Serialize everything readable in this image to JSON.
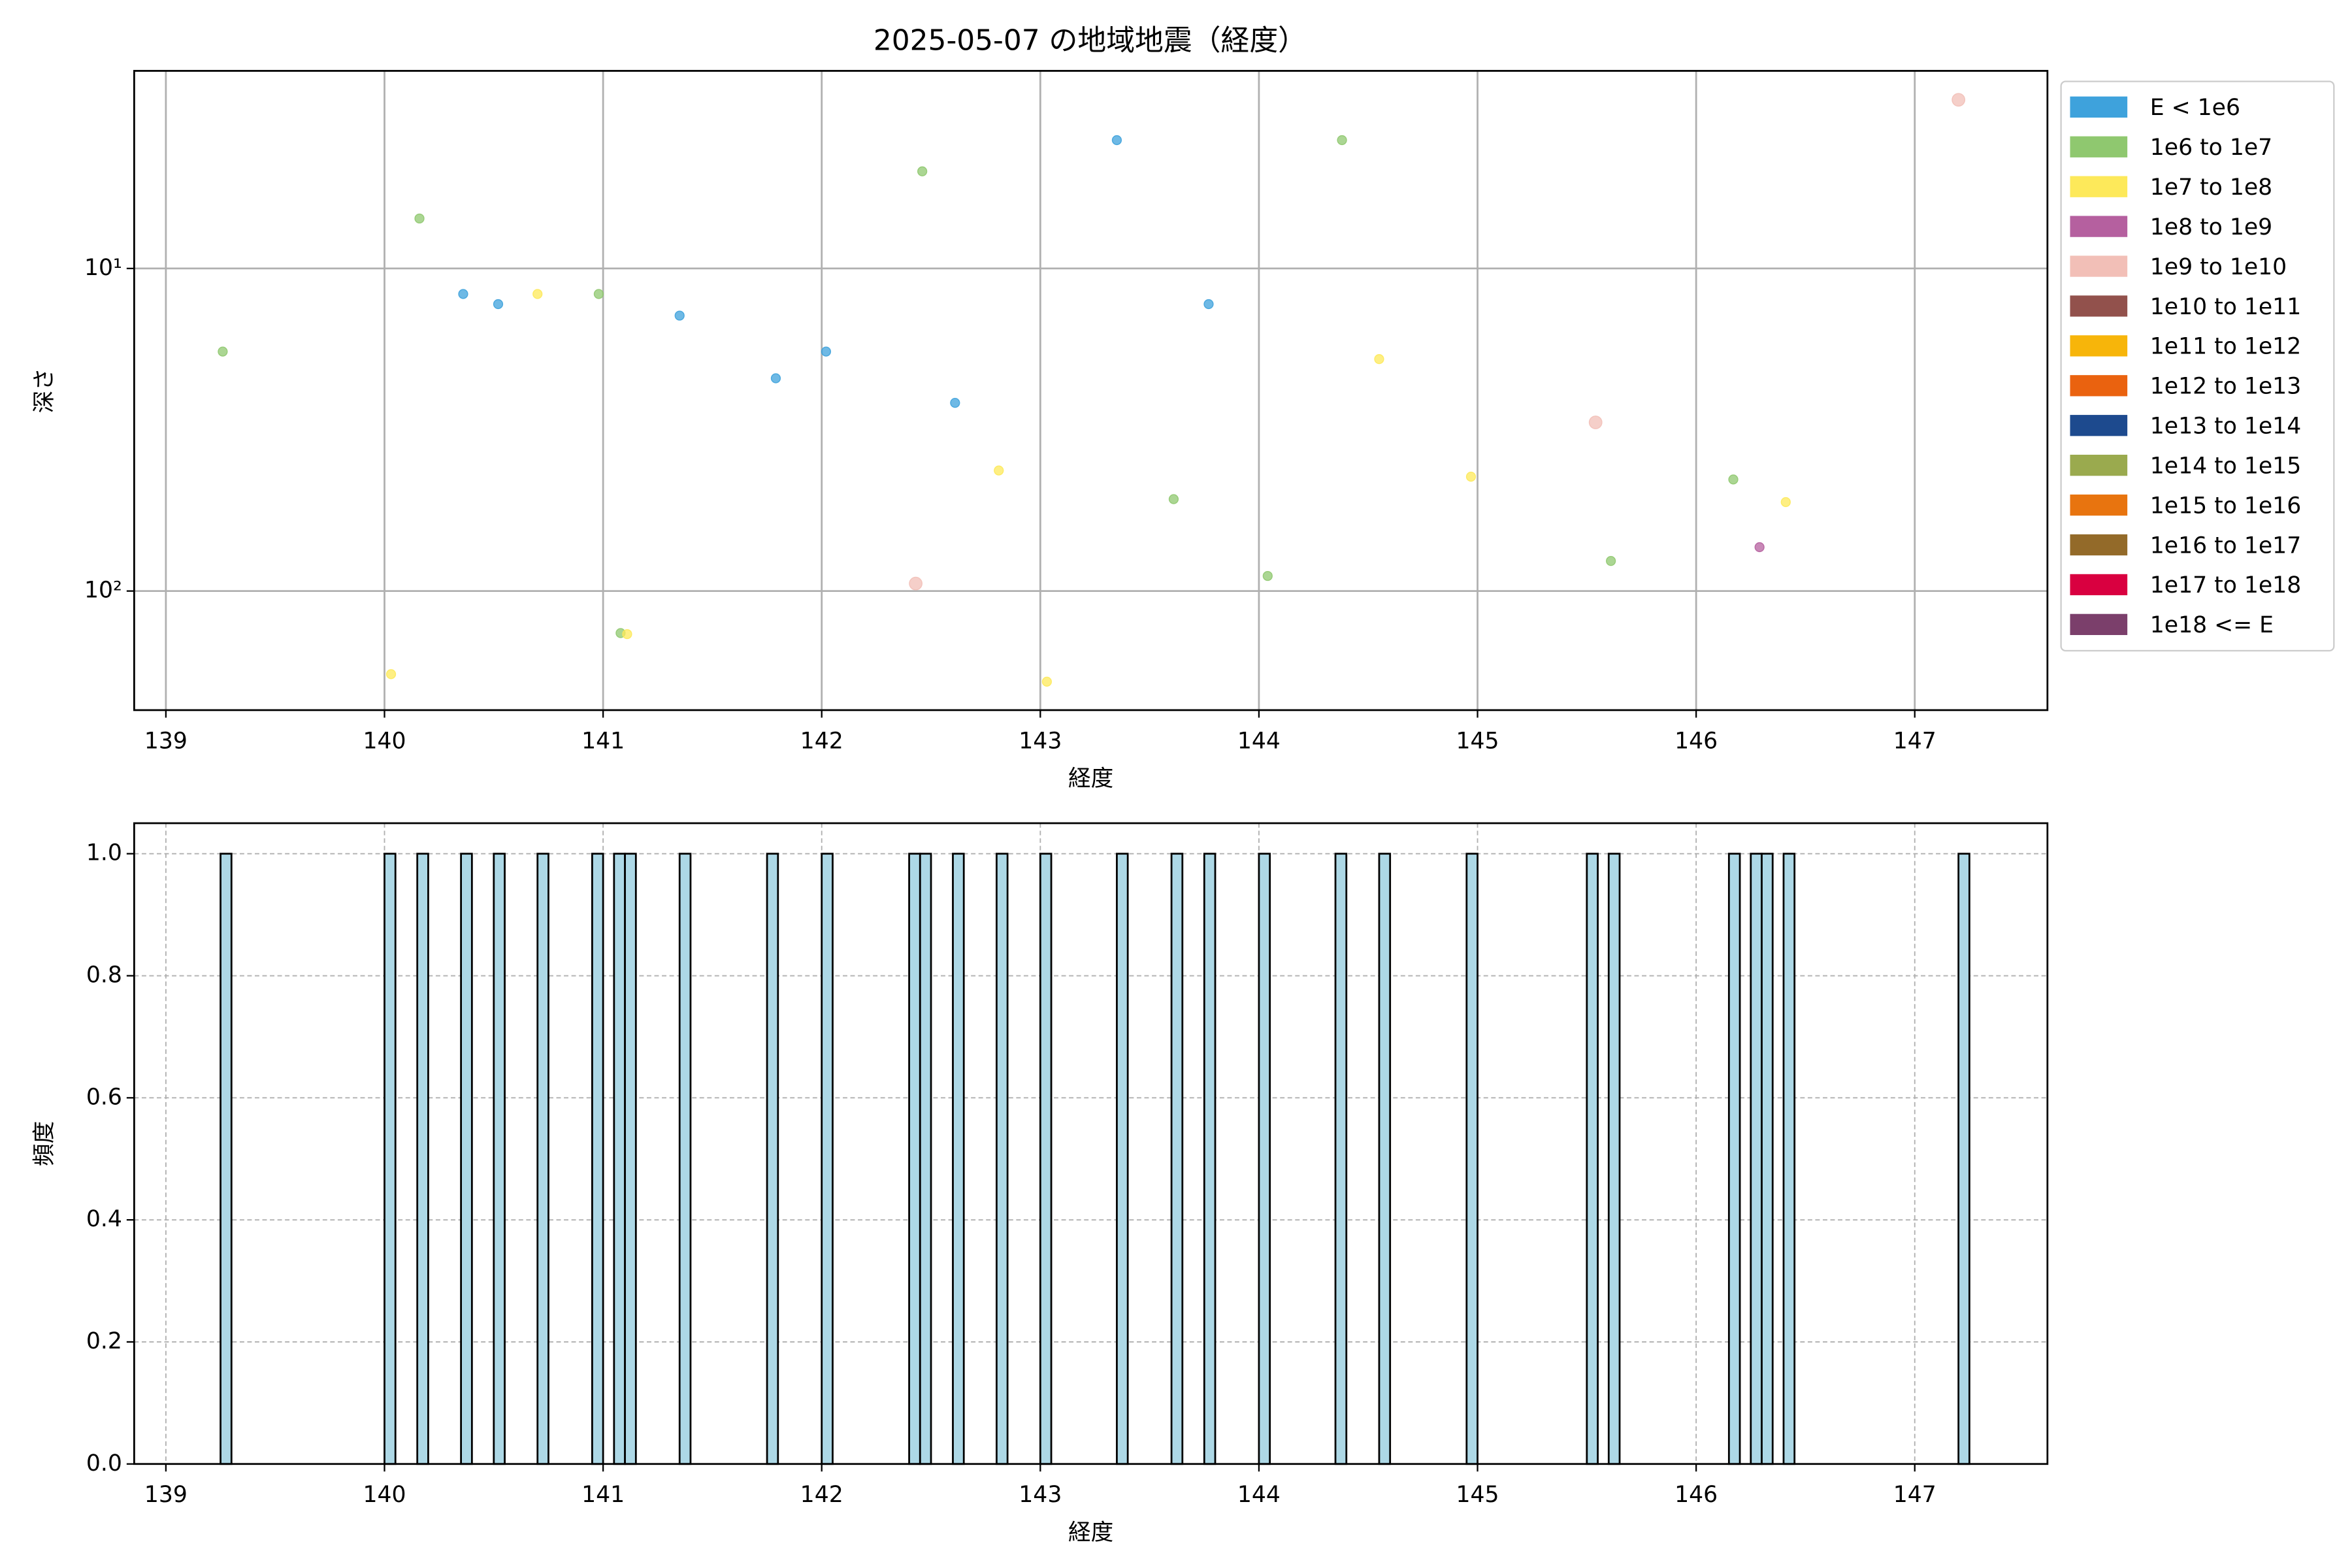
{
  "chart_data": [
    {
      "type": "scatter",
      "title": "2025-05-07 の地域地震（経度）",
      "xlabel": "経度",
      "ylabel": "深さ",
      "log_y": true,
      "grid": true,
      "grid_style": "solid",
      "legend": "outside right",
      "xlim": [
        138.855,
        147.607
      ],
      "xticks": [
        139,
        140,
        141,
        142,
        143,
        144,
        145,
        146,
        147
      ],
      "ylim": [
        234,
        2.44
      ],
      "yticks": [
        {
          "value": 10,
          "label": "10¹"
        },
        {
          "value": 100,
          "label": "10²"
        }
      ],
      "series": [
        {
          "name": "E < 1e6",
          "color": "#3ea2dc",
          "x": [
            140.36,
            140.52,
            141.35,
            141.79,
            142.02,
            142.61,
            143.35,
            143.77
          ],
          "values": [
            12.0,
            12.9,
            14.0,
            21.9,
            18.1,
            26.1,
            4.0,
            12.9
          ]
        },
        {
          "name": "1e6 to 1e7",
          "color": "#8fc86f",
          "x": [
            139.26,
            140.16,
            140.98,
            141.08,
            142.46,
            143.61,
            144.04,
            144.38,
            145.61,
            146.17
          ],
          "values": [
            18.1,
            7.0,
            12.0,
            135,
            5.0,
            51.9,
            89.8,
            4.0,
            80.7,
            45.1
          ]
        },
        {
          "name": "1e7 to 1e8",
          "color": "#fde95a",
          "x": [
            140.03,
            140.7,
            141.11,
            142.81,
            143.03,
            144.55,
            144.97,
            146.41
          ],
          "values": [
            181,
            12.0,
            136,
            42.3,
            191,
            19.1,
            44.2,
            53.0
          ]
        },
        {
          "name": "1e8 to 1e9",
          "color": "#b5609f",
          "x": [
            146.29
          ],
          "values": [
            73.1
          ]
        },
        {
          "name": "1e9 to 1e10",
          "color": "#f2bfb7",
          "x": [
            142.43,
            145.54,
            147.2
          ],
          "values": [
            94.8,
            30.0,
            3.0
          ]
        },
        {
          "name": "1e10 to 1e11",
          "color": "#92514c",
          "x": [],
          "values": []
        },
        {
          "name": "1e11 to 1e12",
          "color": "#f7b50a",
          "x": [],
          "values": []
        },
        {
          "name": "1e12 to 1e13",
          "color": "#ea620f",
          "x": [],
          "values": []
        },
        {
          "name": "1e13 to 1e14",
          "color": "#1d4a8e",
          "x": [],
          "values": []
        },
        {
          "name": "1e14 to 1e15",
          "color": "#9aaa4e",
          "x": [],
          "values": []
        },
        {
          "name": "1e15 to 1e16",
          "color": "#e8740f",
          "x": [],
          "values": []
        },
        {
          "name": "1e16 to 1e17",
          "color": "#936a29",
          "x": [],
          "values": []
        },
        {
          "name": "1e17 to 1e18",
          "color": "#d90040",
          "x": [],
          "values": []
        },
        {
          "name": "1e18 <= E",
          "color": "#7b3f6b",
          "x": [],
          "values": []
        }
      ]
    },
    {
      "type": "histogram",
      "xlabel": "経度",
      "ylabel": "頻度",
      "grid": true,
      "grid_style": "dashed",
      "color": "#add8e6",
      "edgecolor": "#000000",
      "xlim": [
        138.855,
        147.607
      ],
      "xticks": [
        139,
        140,
        141,
        142,
        143,
        144,
        145,
        146,
        147
      ],
      "ylim": [
        0,
        1.05
      ],
      "yticks": [
        {
          "value": 0,
          "label": "0.0"
        },
        {
          "value": 0.2,
          "label": "0.2"
        },
        {
          "value": 0.4,
          "label": "0.4"
        },
        {
          "value": 0.6,
          "label": "0.6"
        },
        {
          "value": 0.8,
          "label": "0.8"
        },
        {
          "value": 1,
          "label": "1.0"
        }
      ],
      "bins": [
        139.25,
        139.3,
        139.35,
        139.4,
        139.45,
        139.5,
        139.55,
        139.6,
        139.65,
        139.7,
        139.75,
        139.8,
        139.85,
        139.9,
        139.95,
        140,
        140.05,
        140.1,
        140.15,
        140.2,
        140.25,
        140.3,
        140.35,
        140.4,
        140.45,
        140.5,
        140.55,
        140.6,
        140.65,
        140.7,
        140.75,
        140.8,
        140.85,
        140.9,
        140.95,
        141,
        141.05,
        141.1,
        141.15,
        141.2,
        141.25,
        141.3,
        141.35,
        141.4,
        141.45,
        141.5,
        141.55,
        141.6,
        141.65,
        141.7,
        141.75,
        141.8,
        141.85,
        141.9,
        141.95,
        142,
        142.05,
        142.1,
        142.15,
        142.2,
        142.25,
        142.3,
        142.35,
        142.4,
        142.45,
        142.5,
        142.55,
        142.6,
        142.65,
        142.7,
        142.75,
        142.8,
        142.85,
        142.9,
        142.95,
        143,
        143.05,
        143.1,
        143.15,
        143.2,
        143.25,
        143.3,
        143.35,
        143.4,
        143.45,
        143.5,
        143.55,
        143.6,
        143.65,
        143.7,
        143.75,
        143.8,
        143.85,
        143.9,
        143.95,
        144,
        144.05,
        144.1,
        144.15,
        144.2,
        144.25,
        144.3,
        144.35,
        144.4,
        144.45,
        144.5,
        144.55,
        144.6,
        144.65,
        144.7,
        144.75,
        144.8,
        144.85,
        144.9,
        144.95,
        145,
        145.05,
        145.1,
        145.15,
        145.2,
        145.25,
        145.3,
        145.35,
        145.4,
        145.45,
        145.5,
        145.55,
        145.6,
        145.65,
        145.7,
        145.75,
        145.8,
        145.85,
        145.9,
        145.95,
        146,
        146.05,
        146.1,
        146.15,
        146.2,
        146.25,
        146.3,
        146.35,
        146.4,
        146.45,
        146.5,
        146.55,
        146.6,
        146.65,
        146.7,
        146.75,
        146.8,
        146.85,
        146.9,
        146.95,
        147,
        147.05,
        147.1,
        147.15,
        147.2,
        147.25
      ],
      "values": [
        1,
        0,
        0,
        0,
        0,
        0,
        0,
        0,
        0,
        0,
        0,
        0,
        0,
        0,
        0,
        1,
        0,
        0,
        1,
        0,
        0,
        0,
        1,
        0,
        0,
        1,
        0,
        0,
        0,
        1,
        0,
        0,
        0,
        0,
        1,
        0,
        1,
        1,
        0,
        0,
        0,
        0,
        1,
        0,
        0,
        0,
        0,
        0,
        0,
        0,
        1,
        0,
        0,
        0,
        0,
        1,
        0,
        0,
        0,
        0,
        0,
        0,
        0,
        1,
        1,
        0,
        0,
        1,
        0,
        0,
        0,
        1,
        0,
        0,
        0,
        1,
        0,
        0,
        0,
        0,
        0,
        0,
        1,
        0,
        0,
        0,
        0,
        1,
        0,
        0,
        1,
        0,
        0,
        0,
        0,
        1,
        0,
        0,
        0,
        0,
        0,
        0,
        1,
        0,
        0,
        0,
        1,
        0,
        0,
        0,
        0,
        0,
        0,
        0,
        1,
        0,
        0,
        0,
        0,
        0,
        0,
        0,
        0,
        0,
        0,
        1,
        0,
        1,
        0,
        0,
        0,
        0,
        0,
        0,
        0,
        0,
        0,
        0,
        1,
        0,
        1,
        1,
        0,
        1,
        0,
        0,
        0,
        0,
        0,
        0,
        0,
        0,
        0,
        0,
        0,
        0,
        0,
        0,
        0,
        1
      ]
    }
  ]
}
